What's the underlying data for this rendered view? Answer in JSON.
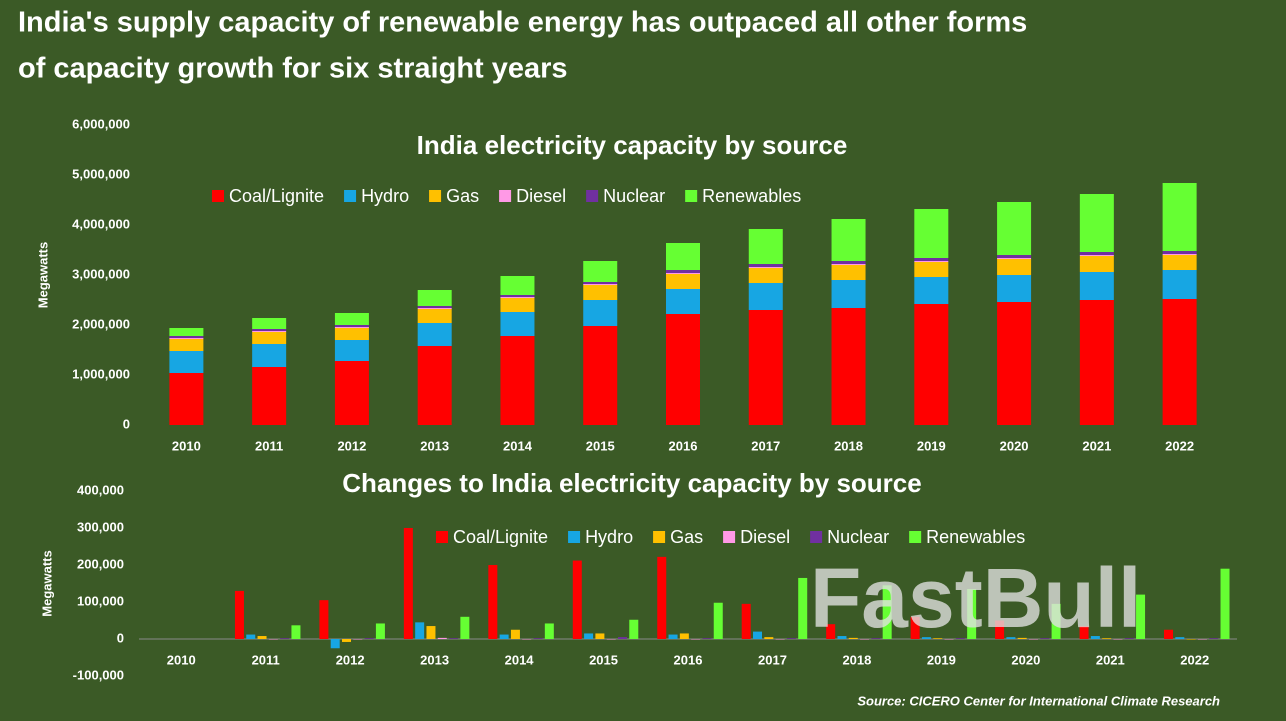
{
  "title": [
    "India's supply capacity of renewable energy has outpaced all other forms",
    "of capacity growth for six straight years"
  ],
  "source": "Source: CICERO Center for International Climate Research",
  "watermark": "FastBull",
  "chart_data": [
    {
      "type": "bar",
      "stacked": true,
      "title": "India electricity capacity by source",
      "y_label": "Megawatts",
      "categories": [
        "2010",
        "2011",
        "2012",
        "2013",
        "2014",
        "2015",
        "2016",
        "2017",
        "2018",
        "2019",
        "2020",
        "2021",
        "2022"
      ],
      "series": [
        {
          "name": "Coal/Lignite",
          "color": "#ff0000",
          "values": [
            1040000,
            1160000,
            1280000,
            1580000,
            1780000,
            1980000,
            2220000,
            2300000,
            2340000,
            2420000,
            2460000,
            2500000,
            2520000
          ]
        },
        {
          "name": "Hydro",
          "color": "#17a6e3",
          "values": [
            440000,
            460000,
            420000,
            460000,
            480000,
            520000,
            500000,
            540000,
            560000,
            540000,
            540000,
            560000,
            580000
          ]
        },
        {
          "name": "Gas",
          "color": "#ffc000",
          "values": [
            240000,
            240000,
            240000,
            280000,
            280000,
            300000,
            300000,
            300000,
            300000,
            300000,
            320000,
            320000,
            300000
          ]
        },
        {
          "name": "Diesel",
          "color": "#ff99e6",
          "values": [
            20000,
            20000,
            20000,
            20000,
            20000,
            20000,
            20000,
            20000,
            20000,
            20000,
            20000,
            20000,
            20000
          ]
        },
        {
          "name": "Nuclear",
          "color": "#7030a0",
          "values": [
            40000,
            40000,
            40000,
            40000,
            40000,
            40000,
            60000,
            60000,
            60000,
            60000,
            60000,
            60000,
            60000
          ]
        },
        {
          "name": "Renewables",
          "color": "#66ff33",
          "values": [
            160000,
            220000,
            240000,
            320000,
            380000,
            420000,
            540000,
            700000,
            840000,
            980000,
            1060000,
            1160000,
            1360000
          ]
        }
      ],
      "ylim": [
        0,
        6000000
      ],
      "yticks": [
        0,
        {
          "value": 1000000,
          "label": "1,000,000"
        },
        {
          "value": 2000000,
          "label": "2,000,000"
        },
        {
          "value": 3000000,
          "label": "3,000,000"
        },
        {
          "value": 4000000,
          "label": "4,000,000"
        },
        {
          "value": 5000000,
          "label": "5,000,000"
        },
        {
          "value": 6000000,
          "label": "6,000,000"
        }
      ],
      "grid": false
    },
    {
      "type": "bar",
      "stacked": false,
      "title": "Changes to India electricity capacity by source",
      "y_label": "Megawatts",
      "categories": [
        "2010",
        "2011",
        "2012",
        "2013",
        "2014",
        "2015",
        "2016",
        "2017",
        "2018",
        "2019",
        "2020",
        "2021",
        "2022"
      ],
      "series": [
        {
          "name": "Coal/Lignite",
          "color": "#ff0000",
          "values": [
            null,
            130000,
            105000,
            300000,
            200000,
            212000,
            222000,
            95000,
            40000,
            60000,
            50000,
            35000,
            25000
          ]
        },
        {
          "name": "Hydro",
          "color": "#17a6e3",
          "values": [
            null,
            12000,
            -25000,
            45000,
            12000,
            15000,
            12000,
            20000,
            8000,
            5000,
            5000,
            8000,
            5000
          ]
        },
        {
          "name": "Gas",
          "color": "#ffc000",
          "values": [
            null,
            8000,
            -8000,
            35000,
            25000,
            15000,
            15000,
            5000,
            3000,
            2000,
            3000,
            2000,
            0
          ]
        },
        {
          "name": "Diesel",
          "color": "#ff99e6",
          "values": [
            null,
            0,
            0,
            3000,
            0,
            0,
            0,
            0,
            0,
            0,
            0,
            0,
            0
          ]
        },
        {
          "name": "Nuclear",
          "color": "#7030a0",
          "values": [
            null,
            2000,
            2000,
            2000,
            2000,
            5000,
            2000,
            2000,
            2000,
            2000,
            2000,
            2000,
            2000
          ]
        },
        {
          "name": "Renewables",
          "color": "#66ff33",
          "values": [
            null,
            37000,
            42000,
            60000,
            42000,
            52000,
            98000,
            165000,
            145000,
            135000,
            95000,
            120000,
            190000
          ]
        }
      ],
      "ylim": [
        -100000,
        400000
      ],
      "yticks": [
        {
          "value": -100000,
          "label": "-100,000"
        },
        0,
        {
          "value": 100000,
          "label": "100,000"
        },
        {
          "value": 200000,
          "label": "200,000"
        },
        {
          "value": 300000,
          "label": "300,000"
        },
        {
          "value": 400000,
          "label": "400,000"
        }
      ],
      "grid": false
    }
  ]
}
